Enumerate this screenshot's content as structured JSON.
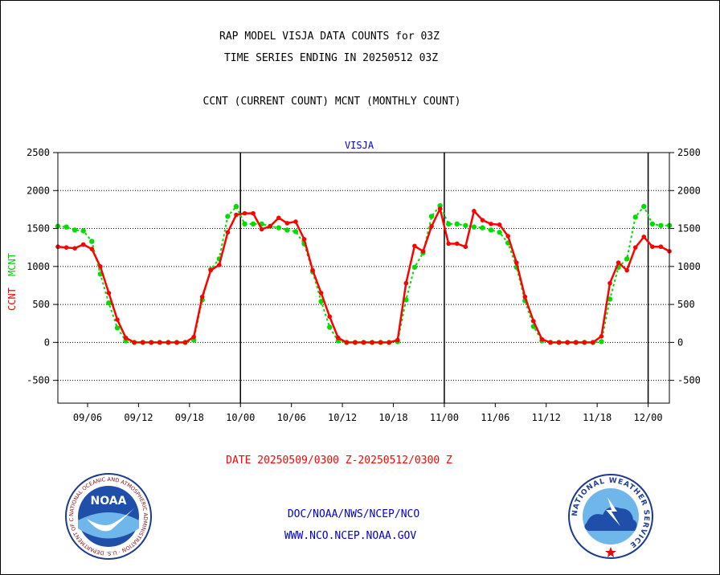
{
  "title_line1": "RAP MODEL VISJA DATA COUNTS for 03Z",
  "title_line2": "TIME SERIES ENDING IN 20250512 03Z",
  "subtitle": "CCNT (CURRENT COUNT) MCNT (MONTHLY COUNT)",
  "footer": {
    "date_range": "DATE 20250509/0300 Z-20250512/0300 Z",
    "org": "DOC/NOAA/NWS/NCEP/NCO",
    "url": "WWW.NCO.NCEP.NOAA.GOV"
  },
  "logos": {
    "noaa_center": "NOAA",
    "noaa_ring": "NATIONAL OCEANIC AND ATMOSPHERIC ADMINISTRATION · U.S. DEPARTMENT OF COMMERCE",
    "nws_ring": "NATIONAL WEATHER SERVICE"
  },
  "colors": {
    "ccnt": "#ff0000",
    "mcnt": "#00dd00",
    "label_blue": "#0000cc",
    "grid": "#000000"
  },
  "chart_data": {
    "type": "line",
    "panel_label": "VISJA",
    "ylabel_left": [
      "CCNT",
      "MCNT"
    ],
    "y_ticks": [
      2500,
      2000,
      1500,
      1000,
      500,
      0,
      -500
    ],
    "ylim": [
      -800,
      2500
    ],
    "x_day_range": [
      0,
      90
    ],
    "x_tick_labels": [
      "09/06",
      "09/12",
      "09/18",
      "10/00",
      "10/06",
      "10/12",
      "10/18",
      "11/00",
      "11/06",
      "11/12",
      "11/18",
      "12/00"
    ],
    "x_tick_positions": [
      3.5,
      9.5,
      15.5,
      21.5,
      27.5,
      33.5,
      39.5,
      45.5,
      51.5,
      57.5,
      63.5,
      69.5
    ],
    "vertical_markers": [
      21.5,
      45.5,
      69.5
    ],
    "grid": "horizontal dotted",
    "series": [
      {
        "name": "CCNT",
        "style": "solid line with dots",
        "x": [
          0,
          1,
          2,
          3,
          4,
          5,
          6,
          7,
          8,
          9,
          10,
          11,
          12,
          13,
          14,
          15,
          16,
          17,
          18,
          19,
          20,
          21,
          22,
          23,
          24,
          25,
          26,
          27,
          28,
          29,
          30,
          31,
          32,
          33,
          34,
          35,
          36,
          37,
          38,
          39,
          40,
          41,
          42,
          43,
          44,
          45,
          46,
          47,
          48,
          49,
          50,
          51,
          52,
          53,
          54,
          55,
          56,
          57,
          58,
          59,
          60,
          61,
          62,
          63,
          64,
          65,
          66,
          67,
          68,
          69,
          70,
          71,
          72
        ],
        "values": [
          1260,
          1250,
          1240,
          1290,
          1230,
          1000,
          650,
          300,
          60,
          0,
          0,
          0,
          0,
          0,
          0,
          0,
          70,
          600,
          950,
          1020,
          1450,
          1680,
          1700,
          1700,
          1490,
          1530,
          1640,
          1570,
          1590,
          1360,
          950,
          650,
          340,
          60,
          0,
          0,
          0,
          0,
          0,
          0,
          30,
          780,
          1270,
          1200,
          1530,
          1760,
          1300,
          1300,
          1260,
          1730,
          1610,
          1560,
          1550,
          1400,
          1050,
          600,
          280,
          40,
          0,
          0,
          0,
          0,
          0,
          0,
          80,
          780,
          1050,
          950,
          1250,
          1390,
          1260,
          1260,
          1200
        ]
      },
      {
        "name": "MCNT",
        "style": "dotted line with dots",
        "x": [
          0,
          1,
          2,
          3,
          4,
          5,
          6,
          7,
          8,
          9,
          10,
          11,
          12,
          13,
          14,
          15,
          16,
          17,
          18,
          19,
          20,
          21,
          22,
          23,
          24,
          25,
          26,
          27,
          28,
          29,
          30,
          31,
          32,
          33,
          34,
          35,
          36,
          37,
          38,
          39,
          40,
          41,
          42,
          43,
          44,
          45,
          46,
          47,
          48,
          49,
          50,
          51,
          52,
          53,
          54,
          55,
          56,
          57,
          58,
          59,
          60,
          61,
          62,
          63,
          64,
          65,
          66,
          67,
          68,
          69,
          70,
          71,
          72
        ],
        "values": [
          1530,
          1520,
          1480,
          1470,
          1330,
          900,
          520,
          190,
          20,
          0,
          0,
          0,
          0,
          0,
          0,
          0,
          30,
          560,
          960,
          1100,
          1660,
          1790,
          1560,
          1560,
          1560,
          1530,
          1510,
          1480,
          1460,
          1300,
          930,
          540,
          200,
          20,
          0,
          0,
          0,
          0,
          0,
          0,
          10,
          560,
          990,
          1180,
          1660,
          1800,
          1560,
          1560,
          1540,
          1520,
          1510,
          1480,
          1450,
          1310,
          990,
          550,
          210,
          20,
          0,
          0,
          0,
          0,
          0,
          0,
          10,
          570,
          990,
          1100,
          1650,
          1790,
          1560,
          1540,
          1540
        ]
      }
    ]
  }
}
